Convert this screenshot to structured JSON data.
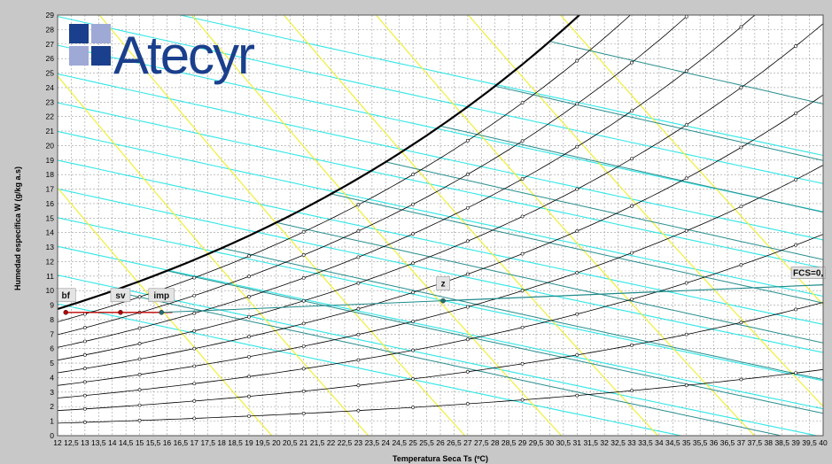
{
  "chart_data": {
    "type": "line",
    "title": "",
    "xlabel": "Temperatura Seca   Ts (ºC)",
    "ylabel": "Humedad específica   W   (g/kg a.s)",
    "xlim": [
      12,
      40
    ],
    "ylim": [
      0,
      29
    ],
    "grid": true,
    "x_ticks": [
      "12",
      "12,5",
      "13",
      "13,5",
      "14",
      "14,5",
      "15",
      "15,5",
      "16",
      "16,5",
      "17",
      "17,5",
      "18",
      "18,5",
      "19",
      "19,5",
      "20",
      "20,5",
      "21",
      "21,5",
      "22",
      "22,5",
      "23",
      "23,5",
      "24",
      "24,5",
      "25",
      "25,5",
      "26",
      "26,5",
      "27",
      "27,5",
      "28",
      "28,5",
      "29",
      "29,5",
      "30",
      "30,5",
      "31",
      "31,5",
      "32",
      "32,5",
      "33",
      "33,5",
      "34",
      "34,5",
      "35",
      "35,5",
      "36",
      "36,5",
      "37",
      "37,5",
      "38",
      "38,5",
      "39",
      "39,5",
      "40"
    ],
    "y_ticks": [
      "0",
      "1",
      "2",
      "3",
      "4",
      "5",
      "6",
      "7",
      "8",
      "9",
      "10",
      "11",
      "12",
      "13",
      "14",
      "15",
      "16",
      "17",
      "18",
      "19",
      "20",
      "21",
      "22",
      "23",
      "24",
      "25",
      "26",
      "27",
      "28",
      "29"
    ],
    "saturation_curve": {
      "name": "saturation",
      "rh": 1.0
    },
    "rh_curves": [
      0.1,
      0.2,
      0.3,
      0.4,
      0.5,
      0.6,
      0.7,
      0.8,
      0.9
    ],
    "wet_bulb_lines": [
      14,
      16,
      18,
      20,
      22,
      24,
      26,
      28,
      30
    ],
    "enthalpy_lines": [
      35,
      40,
      45,
      50,
      55,
      60,
      65,
      70,
      75,
      80,
      85,
      90
    ],
    "volume_lines": [
      0.83,
      0.84,
      0.85,
      0.86,
      0.87,
      0.88,
      0.89,
      0.9
    ],
    "points": [
      {
        "label": "bf",
        "x": 12.3,
        "y": 8.5,
        "color": "#b00000"
      },
      {
        "label": "sv",
        "x": 14.3,
        "y": 8.5,
        "color": "#b00000"
      },
      {
        "label": "imp",
        "x": 15.8,
        "y": 8.5,
        "color": "#207070"
      },
      {
        "label": "z",
        "x": 26.1,
        "y": 9.3,
        "color": "#207070"
      }
    ],
    "process_line": {
      "x1": 12.3,
      "x2": 16.2,
      "y": 8.5,
      "color": "#c00000"
    },
    "fcs_line": {
      "label": "FCS=0,",
      "from": [
        26.1,
        9.3
      ],
      "to": [
        40,
        10.4
      ],
      "color": "#1f8a8a"
    },
    "colors": {
      "rh": "#000000",
      "saturation": "#000000",
      "wet_bulb": "#2b8f8f",
      "enthalpy": "#33e6e6",
      "volume": "#f0ef3a",
      "grid": "#9a9a9a",
      "plot_bg": "#ffffff"
    }
  },
  "logo": {
    "text": "Atecyr"
  }
}
